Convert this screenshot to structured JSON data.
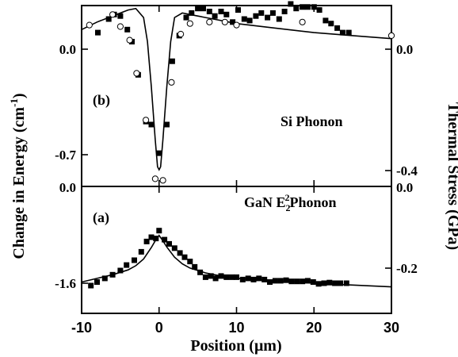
{
  "chart_data": [
    {
      "panel": "(b)",
      "type": "scatter",
      "series_label": "Si Phonon",
      "y_left_ticks": [
        "0.0",
        "-0.7"
      ],
      "y_right_ticks": [
        "0.0",
        "-0.4"
      ],
      "series": [
        {
          "kind": "filled-square",
          "x": [
            -7.9,
            -6.5,
            -5.8,
            -5.0,
            -4.1,
            -3.5,
            -2.7,
            -1.7,
            -1.0,
            0.0,
            1.0,
            1.7,
            2.6,
            3.5,
            4.2,
            5.0,
            5.7,
            6.5,
            7.2,
            8.0,
            8.7,
            9.5,
            10.2,
            11.0,
            11.7,
            12.5,
            13.2,
            14.0,
            14.7,
            15.5,
            16.2,
            17.0,
            17.7,
            18.5,
            19.2,
            20.0,
            20.7,
            21.5,
            22.2,
            23.0,
            23.7,
            24.5
          ],
          "y": [
            0.11,
            0.2,
            0.23,
            0.22,
            0.13,
            0.05,
            -0.17,
            -0.48,
            -0.5,
            -0.69,
            -0.5,
            -0.08,
            0.09,
            0.21,
            0.24,
            0.27,
            0.27,
            0.25,
            0.22,
            0.25,
            0.23,
            0.18,
            0.26,
            0.2,
            0.19,
            0.22,
            0.24,
            0.21,
            0.24,
            0.2,
            0.25,
            0.3,
            0.27,
            0.28,
            0.28,
            0.28,
            0.26,
            0.19,
            0.17,
            0.14,
            0.11,
            0.11
          ]
        },
        {
          "kind": "open-circle",
          "x": [
            -9.0,
            -6.0,
            -5.0,
            -3.8,
            -2.9,
            -1.7,
            -0.5,
            0.5,
            1.6,
            2.8,
            4.0,
            6.5,
            8.5,
            10.0,
            18.5,
            30.0
          ],
          "y": [
            0.16,
            0.23,
            0.15,
            0.06,
            -0.16,
            -0.47,
            -0.86,
            -0.87,
            -0.22,
            0.1,
            0.17,
            0.18,
            0.18,
            0.16,
            0.18,
            0.09
          ]
        }
      ],
      "fit_line": {
        "x": [
          -10,
          -8,
          -6,
          -5,
          -4,
          -3,
          -2,
          -1.5,
          -1,
          -0.5,
          -0.2,
          0,
          0.2,
          0.5,
          1,
          1.5,
          2,
          3,
          4,
          5,
          6,
          8,
          10,
          15,
          20,
          25,
          30
        ],
        "y": [
          0.13,
          0.18,
          0.22,
          0.24,
          0.26,
          0.27,
          0.21,
          0.05,
          -0.25,
          -0.6,
          -0.78,
          -0.8,
          -0.78,
          -0.6,
          -0.25,
          0.05,
          0.21,
          0.24,
          0.23,
          0.22,
          0.21,
          0.19,
          0.17,
          0.14,
          0.11,
          0.09,
          0.07
        ]
      }
    },
    {
      "panel": "(a)",
      "type": "scatter",
      "series_label_main": "GaN E",
      "series_label_sub": "2",
      "series_label_sup": "2",
      "series_label_tail": "Phonon",
      "y_left_ticks": [
        "0.0",
        "-1.6"
      ],
      "y_right_ticks": [
        "0.0",
        "-0.2"
      ],
      "series": [
        {
          "kind": "filled-square",
          "x": [
            -8.8,
            -8.0,
            -7.0,
            -6.0,
            -5.0,
            -4.2,
            -3.2,
            -2.3,
            -1.6,
            -1.0,
            -0.4,
            0.0,
            0.7,
            1.3,
            2.0,
            2.7,
            3.3,
            4.0,
            4.6,
            5.3,
            6.0,
            6.7,
            7.3,
            8.0,
            8.7,
            9.4,
            10.0,
            10.8,
            11.5,
            12.2,
            12.9,
            13.6,
            14.3,
            15.0,
            15.7,
            16.4,
            17.1,
            17.8,
            18.5,
            19.2,
            19.9,
            20.6,
            21.3,
            22.0,
            22.7,
            23.4,
            24.2
          ],
          "y": [
            -1.64,
            -1.58,
            -1.52,
            -1.46,
            -1.39,
            -1.3,
            -1.22,
            -1.08,
            -0.91,
            -0.84,
            -0.86,
            -0.73,
            -0.88,
            -0.95,
            -1.02,
            -1.1,
            -1.17,
            -1.24,
            -1.33,
            -1.42,
            -1.5,
            -1.48,
            -1.52,
            -1.48,
            -1.5,
            -1.5,
            -1.5,
            -1.54,
            -1.52,
            -1.54,
            -1.52,
            -1.54,
            -1.58,
            -1.56,
            -1.56,
            -1.55,
            -1.57,
            -1.57,
            -1.57,
            -1.56,
            -1.58,
            -1.61,
            -1.6,
            -1.59,
            -1.6,
            -1.6,
            -1.6
          ]
        }
      ],
      "fit_line": {
        "x": [
          -10,
          -8,
          -6,
          -4,
          -3,
          -2,
          -1,
          -0.5,
          0,
          0.5,
          1,
          2,
          3,
          4,
          6,
          8,
          10,
          15,
          20,
          25,
          30
        ],
        "y": [
          -1.58,
          -1.52,
          -1.46,
          -1.38,
          -1.31,
          -1.2,
          -1.01,
          -0.9,
          -0.81,
          -0.9,
          -1.0,
          -1.17,
          -1.28,
          -1.35,
          -1.43,
          -1.48,
          -1.52,
          -1.56,
          -1.6,
          -1.63,
          -1.66
        ]
      }
    }
  ],
  "x_axis": {
    "label_main": "Position (",
    "label_mu": "μ",
    "label_tail": "m)",
    "range": [
      -10,
      30
    ],
    "ticks": [
      "-10",
      "0",
      "10",
      "20",
      "30"
    ]
  },
  "left_axis_label": "Change in Energy (cm",
  "left_axis_label_sup": "-1",
  "left_axis_label_tail": ")",
  "right_axis_label": "Thermal Stress (GPa)"
}
